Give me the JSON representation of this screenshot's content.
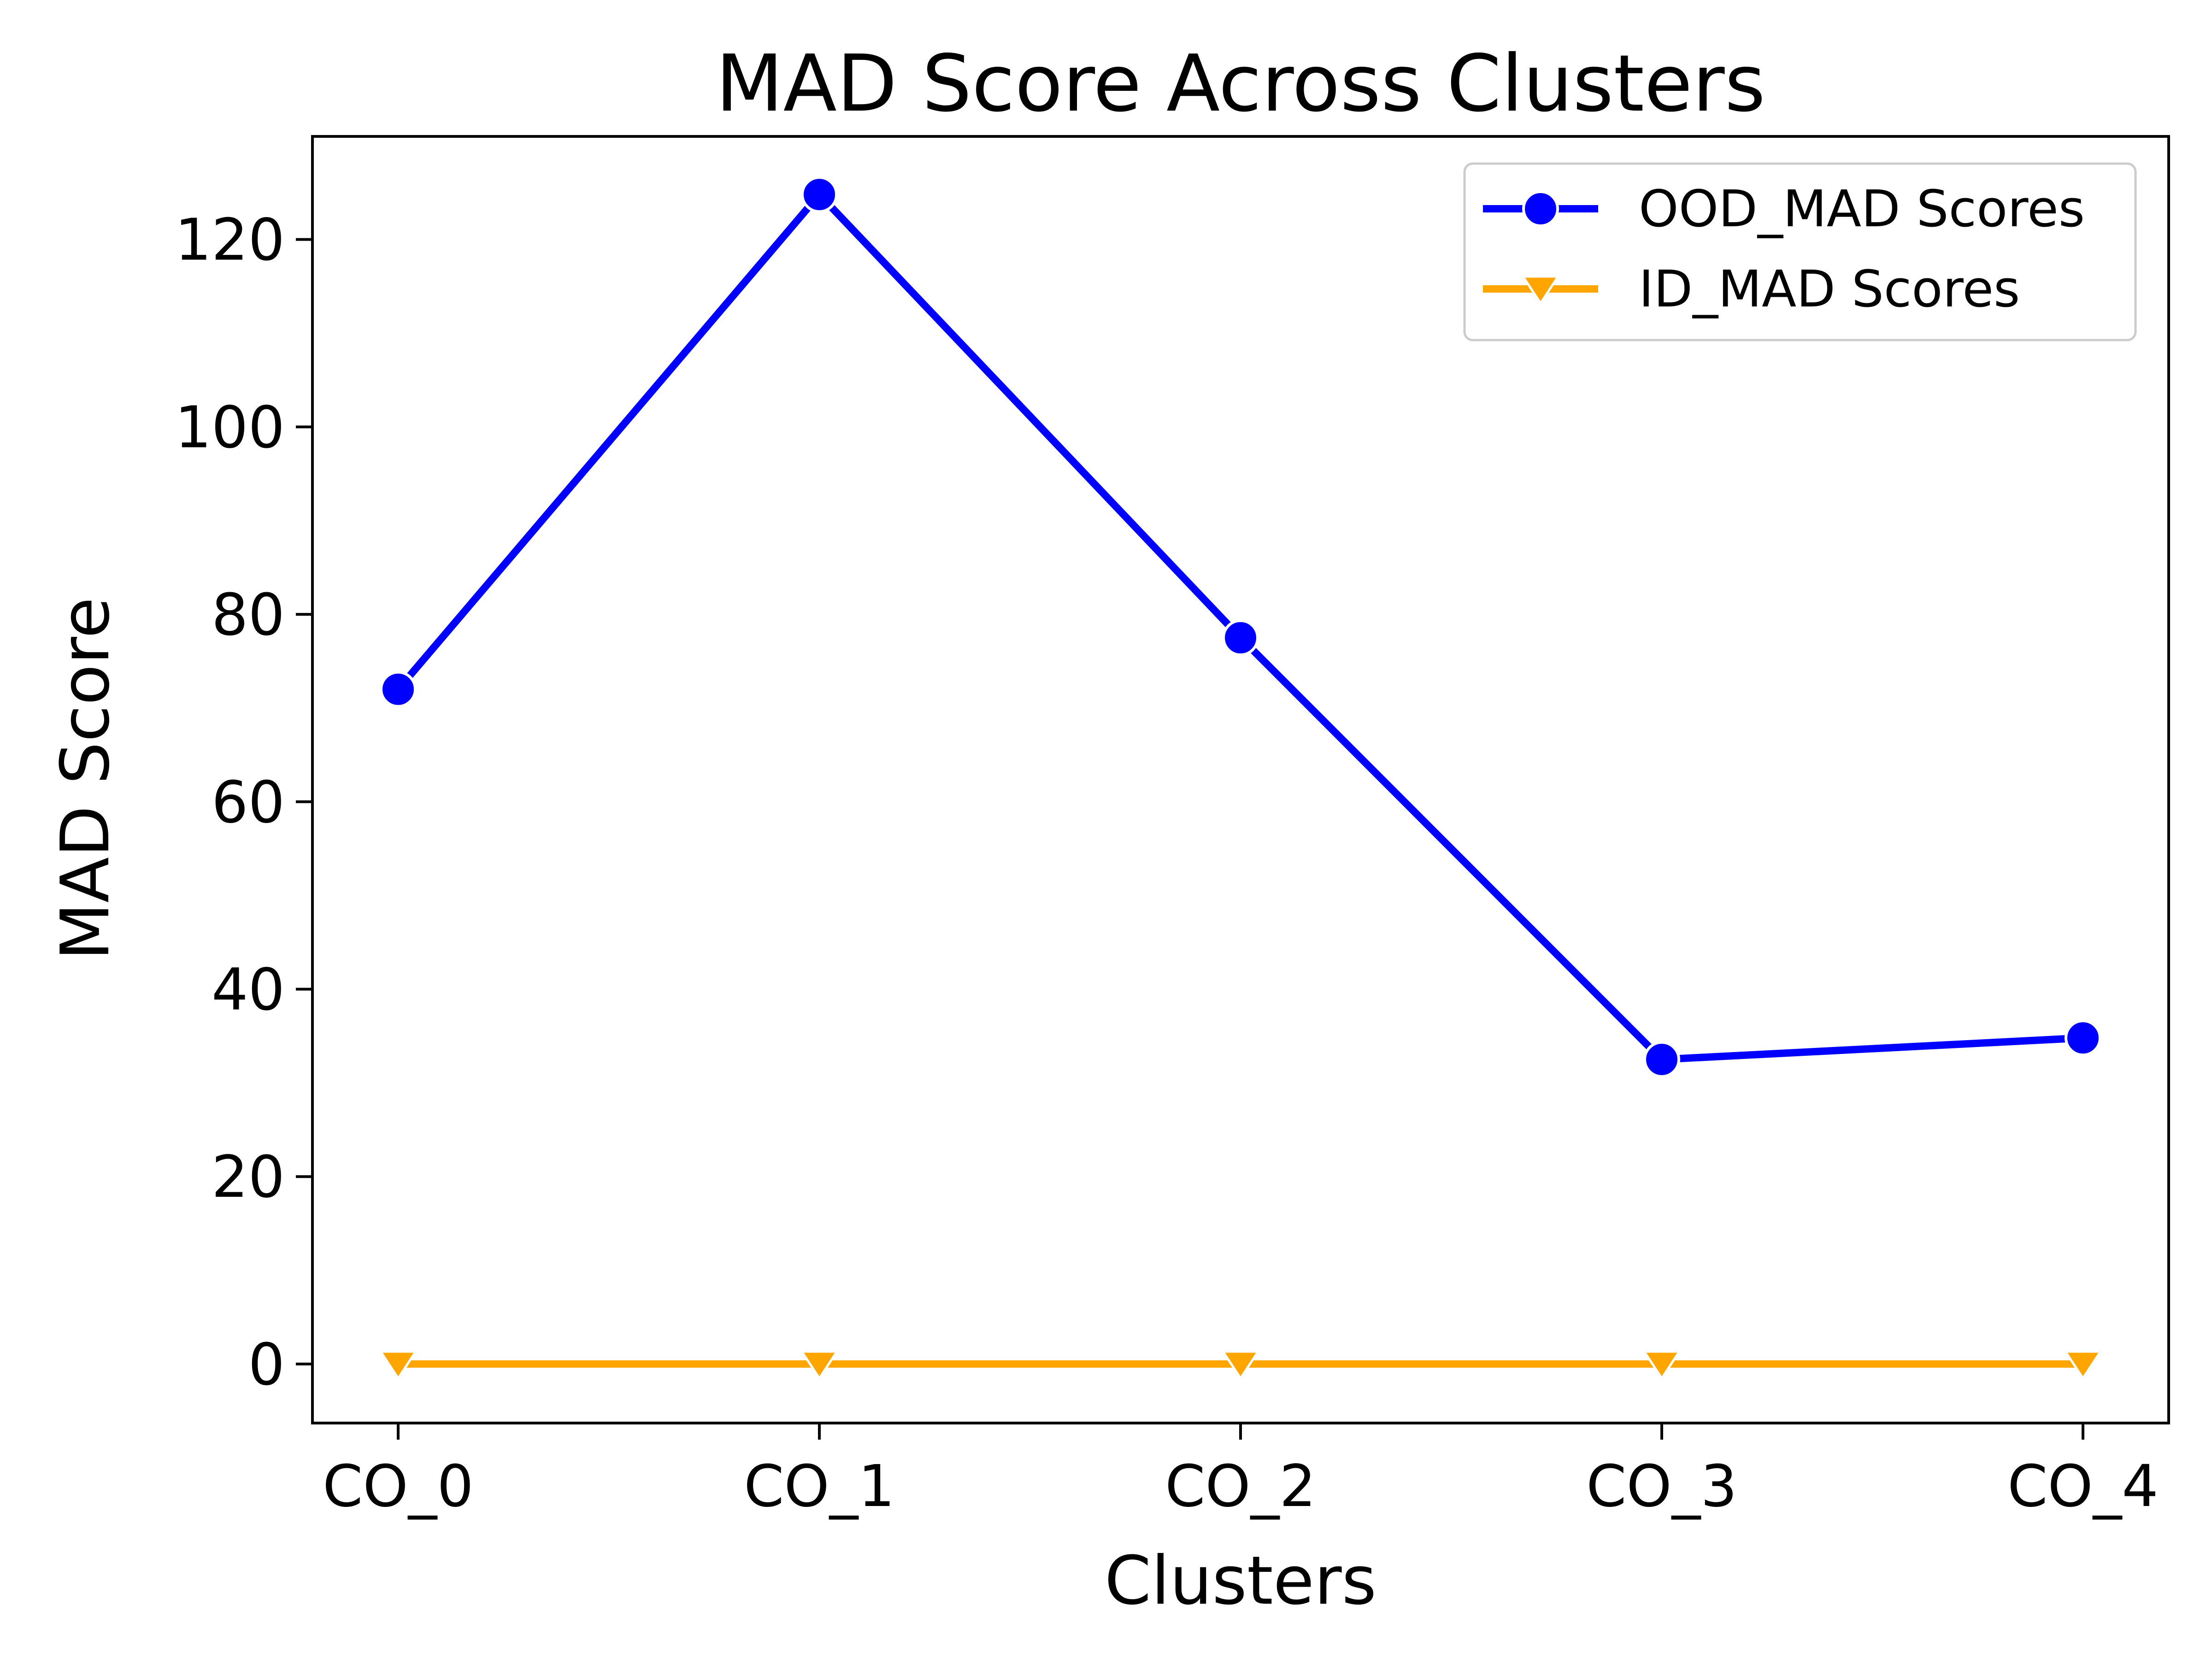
{
  "chart_data": {
    "type": "line",
    "title": "MAD Score Across Clusters",
    "xlabel": "Clusters",
    "ylabel": "MAD Score",
    "categories": [
      "CO_0",
      "CO_1",
      "CO_2",
      "CO_3",
      "CO_4"
    ],
    "ylim": [
      -6.3,
      131
    ],
    "yticks": [
      0,
      20,
      40,
      60,
      80,
      100,
      120
    ],
    "grid": false,
    "legend_position": "top-right",
    "series": [
      {
        "name": "OOD_MAD Scores",
        "values": [
          72,
          124.8,
          77.5,
          32.5,
          34.8
        ],
        "color": "#0000ff",
        "marker": "circle"
      },
      {
        "name": "ID_MAD Scores",
        "values": [
          0,
          0,
          0,
          0,
          0
        ],
        "color": "#ffa500",
        "marker": "triangle-down"
      }
    ]
  }
}
